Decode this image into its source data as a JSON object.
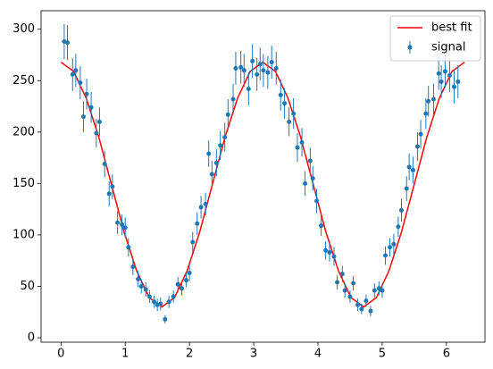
{
  "chart_data": {
    "type": "errorbar",
    "xlim": [
      -0.31,
      6.6
    ],
    "ylim": [
      -4.3,
      318
    ],
    "xticks": [
      0,
      1,
      2,
      3,
      4,
      5,
      6
    ],
    "yticks": [
      0,
      50,
      100,
      150,
      200,
      250,
      300
    ],
    "grid": false,
    "legend": "upper right",
    "series": [
      {
        "name": "best fit",
        "type": "line",
        "color": "#ff0000",
        "x": [
          0,
          0.196,
          0.393,
          0.589,
          0.785,
          0.982,
          1.178,
          1.374,
          1.571,
          1.767,
          1.963,
          2.16,
          2.356,
          2.553,
          2.749,
          2.945,
          3.142,
          3.338,
          3.534,
          3.731,
          3.927,
          4.123,
          4.32,
          4.516,
          4.712,
          4.909,
          5.105,
          5.301,
          5.498,
          5.694,
          5.89,
          6.087,
          6.283
        ],
        "values": [
          268,
          259,
          233,
          195,
          149,
          103,
          65,
          39,
          30,
          39,
          65,
          103,
          149,
          195,
          233,
          259,
          268,
          259,
          233,
          195,
          149,
          103,
          65,
          39,
          30,
          39,
          65,
          103,
          149,
          195,
          233,
          259,
          268
        ]
      },
      {
        "name": "signal",
        "type": "errorbar",
        "color": "#1f77b4",
        "x": [
          0.05,
          0.1,
          0.18,
          0.23,
          0.3,
          0.35,
          0.4,
          0.47,
          0.55,
          0.6,
          0.68,
          0.75,
          0.8,
          0.88,
          0.95,
          1.0,
          1.05,
          1.12,
          1.2,
          1.25,
          1.32,
          1.38,
          1.45,
          1.5,
          1.55,
          1.62,
          1.68,
          1.75,
          1.82,
          1.88,
          1.95,
          2.0,
          2.05,
          2.12,
          2.18,
          2.25,
          2.3,
          2.35,
          2.42,
          2.48,
          2.55,
          2.6,
          2.68,
          2.72,
          2.8,
          2.85,
          2.92,
          2.98,
          3.05,
          3.1,
          3.15,
          3.22,
          3.28,
          3.35,
          3.42,
          3.48,
          3.55,
          3.62,
          3.68,
          3.75,
          3.8,
          3.88,
          3.92,
          3.98,
          4.05,
          4.12,
          4.18,
          4.25,
          4.3,
          4.38,
          4.42,
          4.5,
          4.55,
          4.62,
          4.68,
          4.75,
          4.82,
          4.88,
          4.95,
          5.0,
          5.05,
          5.12,
          5.18,
          5.25,
          5.3,
          5.38,
          5.42,
          5.48,
          5.55,
          5.6,
          5.68,
          5.72,
          5.8,
          5.88,
          5.92,
          5.98,
          6.05,
          6.12,
          6.18
        ],
        "values": [
          288,
          287,
          256,
          260,
          248,
          215,
          237,
          224,
          199,
          210,
          169,
          140,
          147,
          112,
          110,
          107,
          88,
          69,
          57,
          50,
          47,
          40,
          35,
          32,
          33,
          18,
          35,
          40,
          52,
          48,
          56,
          63,
          93,
          111,
          127,
          130,
          179,
          159,
          170,
          187,
          195,
          217,
          232,
          262,
          263,
          260,
          242,
          269,
          256,
          266,
          260,
          258,
          268,
          262,
          236,
          228,
          210,
          218,
          185,
          190,
          150,
          172,
          155,
          133,
          109,
          85,
          83,
          79,
          54,
          62,
          46,
          40,
          53,
          32,
          28,
          36,
          26,
          46,
          48,
          46,
          80,
          88,
          91,
          108,
          124,
          145,
          166,
          163,
          186,
          198,
          218,
          230,
          232,
          257,
          249,
          259,
          255,
          244,
          249
        ],
        "errors": [
          17,
          17,
          16,
          16,
          16,
          15,
          15,
          15,
          14,
          14,
          13,
          12,
          12,
          11,
          10,
          10,
          9,
          8,
          8,
          7,
          7,
          6,
          6,
          6,
          6,
          4,
          6,
          6,
          7,
          7,
          7,
          8,
          10,
          11,
          11,
          11,
          13,
          13,
          13,
          14,
          14,
          15,
          15,
          16,
          16,
          16,
          16,
          16,
          16,
          16,
          16,
          16,
          16,
          16,
          15,
          15,
          14,
          15,
          14,
          14,
          12,
          13,
          12,
          12,
          10,
          9,
          9,
          9,
          7,
          8,
          7,
          6,
          7,
          6,
          5,
          6,
          5,
          7,
          7,
          7,
          9,
          9,
          10,
          10,
          11,
          12,
          13,
          13,
          14,
          14,
          15,
          15,
          15,
          16,
          16,
          16,
          16,
          16,
          16
        ]
      }
    ]
  }
}
